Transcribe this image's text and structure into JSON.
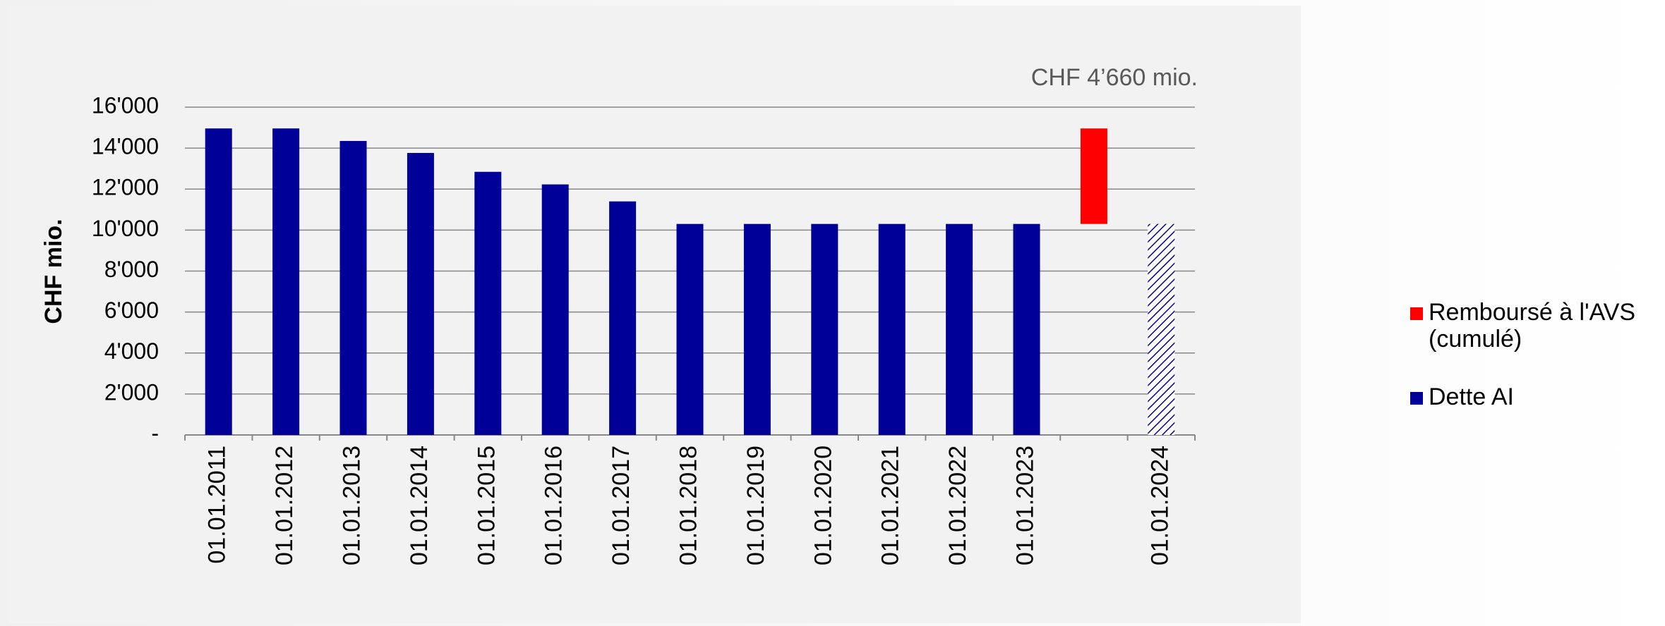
{
  "chart_data": {
    "type": "bar",
    "stacked": true,
    "annotation": "CHF 4’660  mio.",
    "ylabel": "CHF mio.",
    "categories": [
      "01.01.2011",
      "01.01.2012",
      "01.01.2013",
      "01.01.2014",
      "01.01.2015",
      "01.01.2016",
      "01.01.2017",
      "01.01.2018",
      "01.01.2019",
      "01.01.2020",
      "01.01.2021",
      "01.01.2022",
      "01.01.2023",
      null,
      "01.01.2024"
    ],
    "series": [
      {
        "name": "Dette AI",
        "color": "#000099",
        "hatched_categories": [
          14
        ],
        "values": [
          14960,
          14960,
          14350,
          13765,
          12843,
          12229,
          11400,
          10300,
          10300,
          10300,
          10300,
          10300,
          10300,
          null,
          10300
        ]
      },
      {
        "name": "Remboursé à l'AVS (cumulé)",
        "color": "#ff0000",
        "floating": true,
        "values": [
          null,
          null,
          null,
          null,
          null,
          null,
          null,
          null,
          null,
          null,
          null,
          null,
          null,
          4660,
          null
        ]
      }
    ],
    "ylim": [
      0,
      16000
    ],
    "yticks": [
      {
        "value": 0,
        "label": "-"
      },
      {
        "value": 2000,
        "label": "2'000"
      },
      {
        "value": 4000,
        "label": "4'000"
      },
      {
        "value": 6000,
        "label": "6'000"
      },
      {
        "value": 8000,
        "label": "8'000"
      },
      {
        "value": 10000,
        "label": "10'000"
      },
      {
        "value": 12000,
        "label": "12'000"
      },
      {
        "value": 14000,
        "label": "14'000"
      },
      {
        "value": 16000,
        "label": "16'000"
      }
    ],
    "grid": true,
    "legend": "right"
  }
}
